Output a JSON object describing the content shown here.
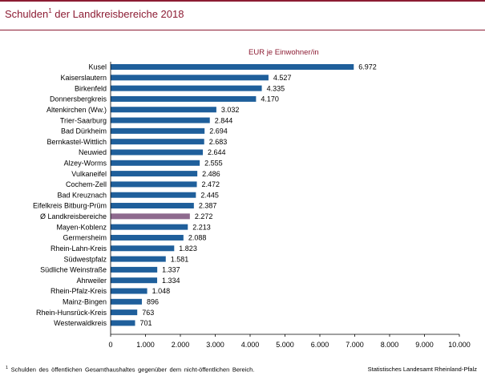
{
  "header": {
    "title": "Schulden",
    "title_footnote_marker": "1",
    "title_rest": " der Landkreisbereiche 2018"
  },
  "colors": {
    "accent": "#8c1c33",
    "bar": "#1f5f9b",
    "average_bar": "#8e6a8e"
  },
  "chart_data": {
    "type": "bar",
    "orientation": "horizontal",
    "unit_label": "EUR je Einwohner/in",
    "categories": [
      "Kusel",
      "Kaiserslautern",
      "Birkenfeld",
      "Donnersbergkreis",
      "Altenkirchen (Ww.)",
      "Trier-Saarburg",
      "Bad Dürkheim",
      "Bernkastel-Wittlich",
      "Neuwied",
      "Alzey-Worms",
      "Vulkaneifel",
      "Cochem-Zell",
      "Bad Kreuznach",
      "Eifelkreis Bitburg-Prüm",
      "Ø Landkreisbereiche",
      "Mayen-Koblenz",
      "Germersheim",
      "Rhein-Lahn-Kreis",
      "Südwestpfalz",
      "Südliche Weinstraße",
      "Ahrweiler",
      "Rhein-Pfalz-Kreis",
      "Mainz-Bingen",
      "Rhein-Hunsrück-Kreis",
      "Westerwaldkreis"
    ],
    "values": [
      6972,
      4527,
      4335,
      4170,
      3032,
      2844,
      2694,
      2683,
      2644,
      2555,
      2486,
      2472,
      2445,
      2387,
      2272,
      2213,
      2088,
      1823,
      1581,
      1337,
      1334,
      1048,
      896,
      763,
      701
    ],
    "value_labels": [
      "6.972",
      "4.527",
      "4.335",
      "4.170",
      "3.032",
      "2.844",
      "2.694",
      "2.683",
      "2.644",
      "2.555",
      "2.486",
      "2.472",
      "2.445",
      "2.387",
      "2.272",
      "2.213",
      "2.088",
      "1.823",
      "1.581",
      "1.337",
      "1.334",
      "1.048",
      "896",
      "763",
      "701"
    ],
    "highlight_category": "Ø Landkreisbereiche",
    "xlim": [
      0,
      10000
    ],
    "xticks": [
      0,
      1000,
      2000,
      3000,
      4000,
      5000,
      6000,
      7000,
      8000,
      9000,
      10000
    ],
    "xtick_labels": [
      "0",
      "1.000",
      "2.000",
      "3.000",
      "4.000",
      "5.000",
      "6.000",
      "7.000",
      "8.000",
      "9.000",
      "10.000"
    ],
    "grid": false
  },
  "footer": {
    "footnote_marker": "1",
    "footnote_text": " Schulden des öffentlichen Gesamthaushaltes gegenüber dem nicht-öffentlichen Bereich.",
    "source": "Statistisches Landesamt Rheinland-Pfalz"
  }
}
